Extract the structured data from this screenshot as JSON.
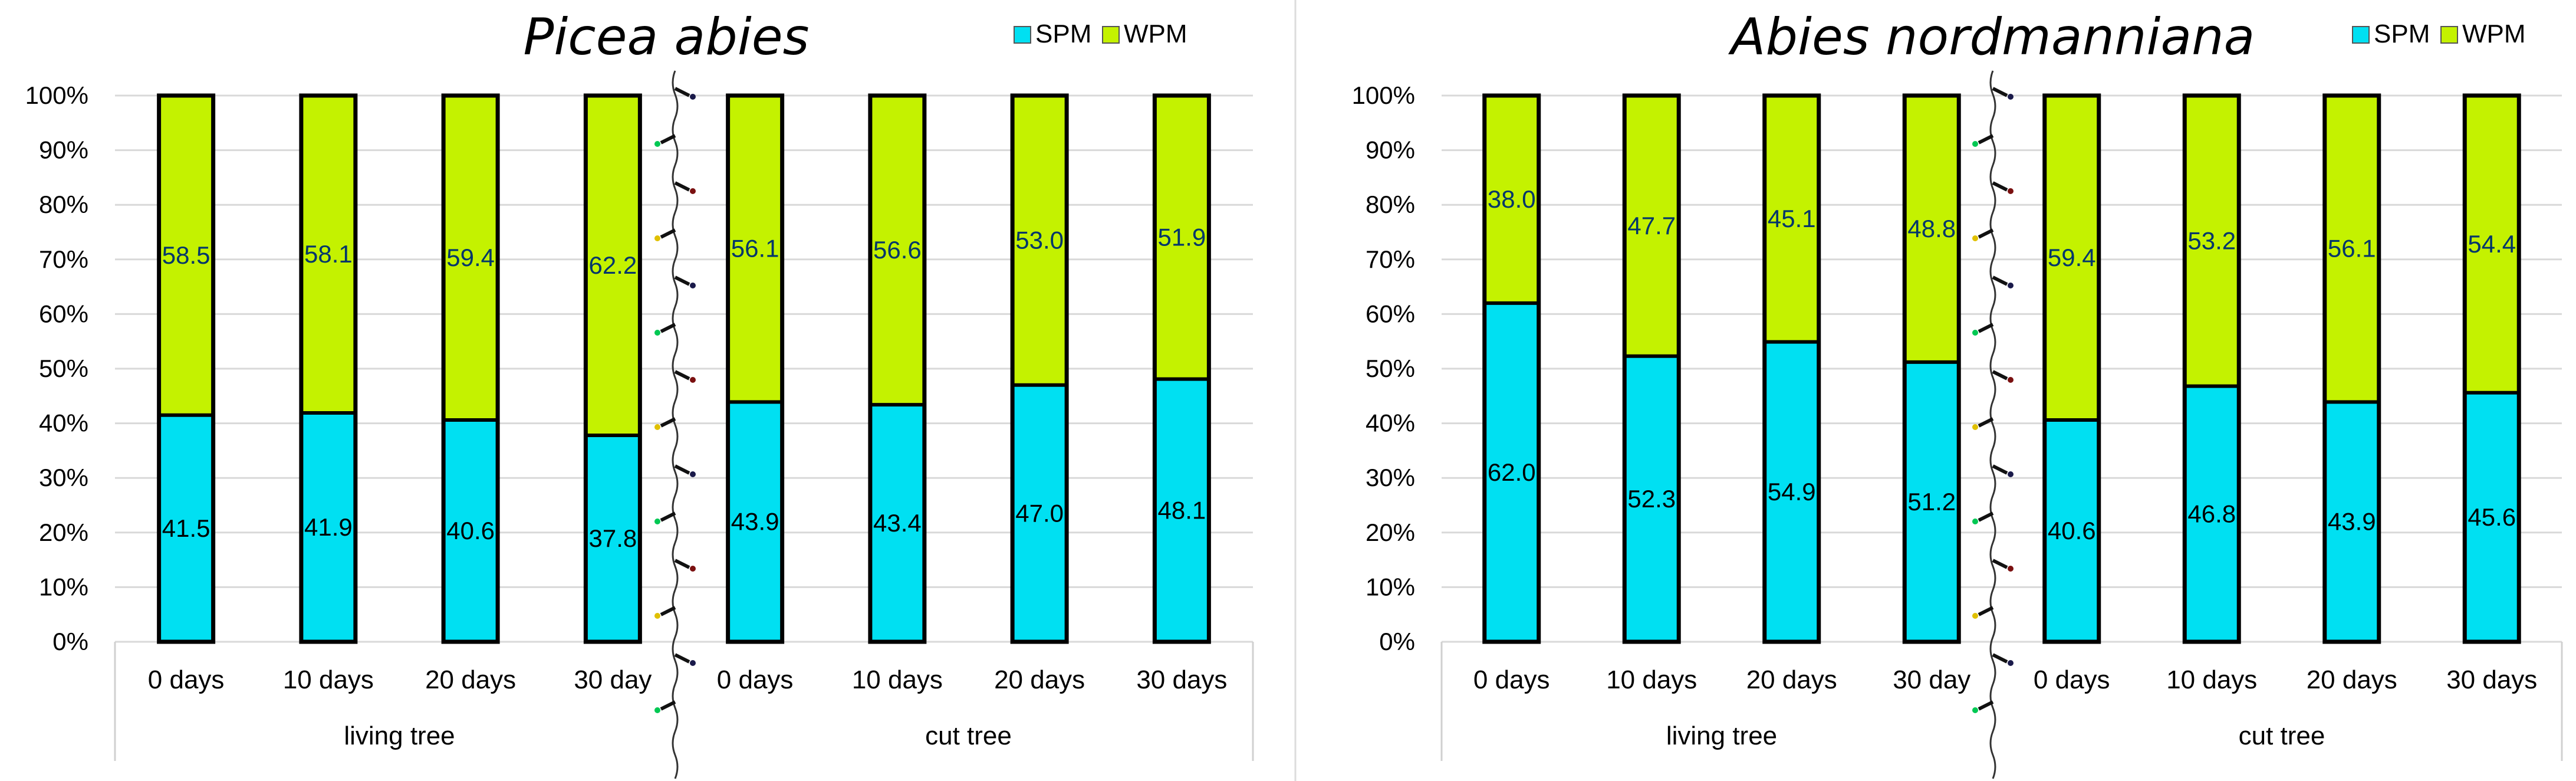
{
  "colors": {
    "spm": "#00e0f2",
    "wpm": "#c4f200",
    "wpm_label": "#00356b"
  },
  "chart_data": [
    {
      "type": "bar",
      "stacked": true,
      "title": "Picea abies",
      "legend": [
        "SPM",
        "WPM"
      ],
      "y_ticks": [
        "0%",
        "10%",
        "20%",
        "30%",
        "40%",
        "50%",
        "60%",
        "70%",
        "80%",
        "90%",
        "100%"
      ],
      "ylim": [
        0,
        100
      ],
      "groups": [
        {
          "label": "living tree",
          "categories": [
            "0 days",
            "10 days",
            "20 days",
            "30 day"
          ]
        },
        {
          "label": "cut tree",
          "categories": [
            "0 days",
            "10 days",
            "20 days",
            "30 days"
          ]
        }
      ],
      "series": [
        {
          "name": "SPM",
          "values": [
            41.5,
            41.9,
            40.6,
            37.8,
            43.9,
            43.4,
            47.0,
            48.1
          ],
          "labels": [
            "41.5",
            "41.9",
            "40.6",
            "37.8",
            "43.9",
            "43.4",
            "47.0",
            "48.1"
          ]
        },
        {
          "name": "WPM",
          "values": [
            58.5,
            58.1,
            59.4,
            62.2,
            56.1,
            56.6,
            53.0,
            51.9
          ],
          "labels": [
            "58.5",
            "58.1",
            "59.4",
            "62.2",
            "56.1",
            "56.6",
            "53.0",
            "51.9"
          ]
        }
      ]
    },
    {
      "type": "bar",
      "stacked": true,
      "title": "Abies nordmanniana",
      "legend": [
        "SPM",
        "WPM"
      ],
      "y_ticks": [
        "0%",
        "10%",
        "20%",
        "30%",
        "40%",
        "50%",
        "60%",
        "70%",
        "80%",
        "90%",
        "100%"
      ],
      "ylim": [
        0,
        100
      ],
      "groups": [
        {
          "label": "living tree",
          "categories": [
            "0 days",
            "10 days",
            "20 days",
            "30 day"
          ]
        },
        {
          "label": "cut tree",
          "categories": [
            "0 days",
            "10 days",
            "20 days",
            "30 days"
          ]
        }
      ],
      "series": [
        {
          "name": "SPM",
          "values": [
            62.0,
            52.3,
            54.9,
            51.2,
            40.6,
            46.8,
            43.9,
            45.6
          ],
          "labels": [
            "62.0",
            "52.3",
            "54.9",
            "51.2",
            "40.6",
            "46.8",
            "43.9",
            "45.6"
          ]
        },
        {
          "name": "WPM",
          "values": [
            38.0,
            47.7,
            45.1,
            48.8,
            59.4,
            53.2,
            56.1,
            54.4
          ],
          "labels": [
            "38.0",
            "47.7",
            "45.1",
            "48.8",
            "59.4",
            "53.2",
            "56.1",
            "54.4"
          ]
        }
      ]
    }
  ]
}
